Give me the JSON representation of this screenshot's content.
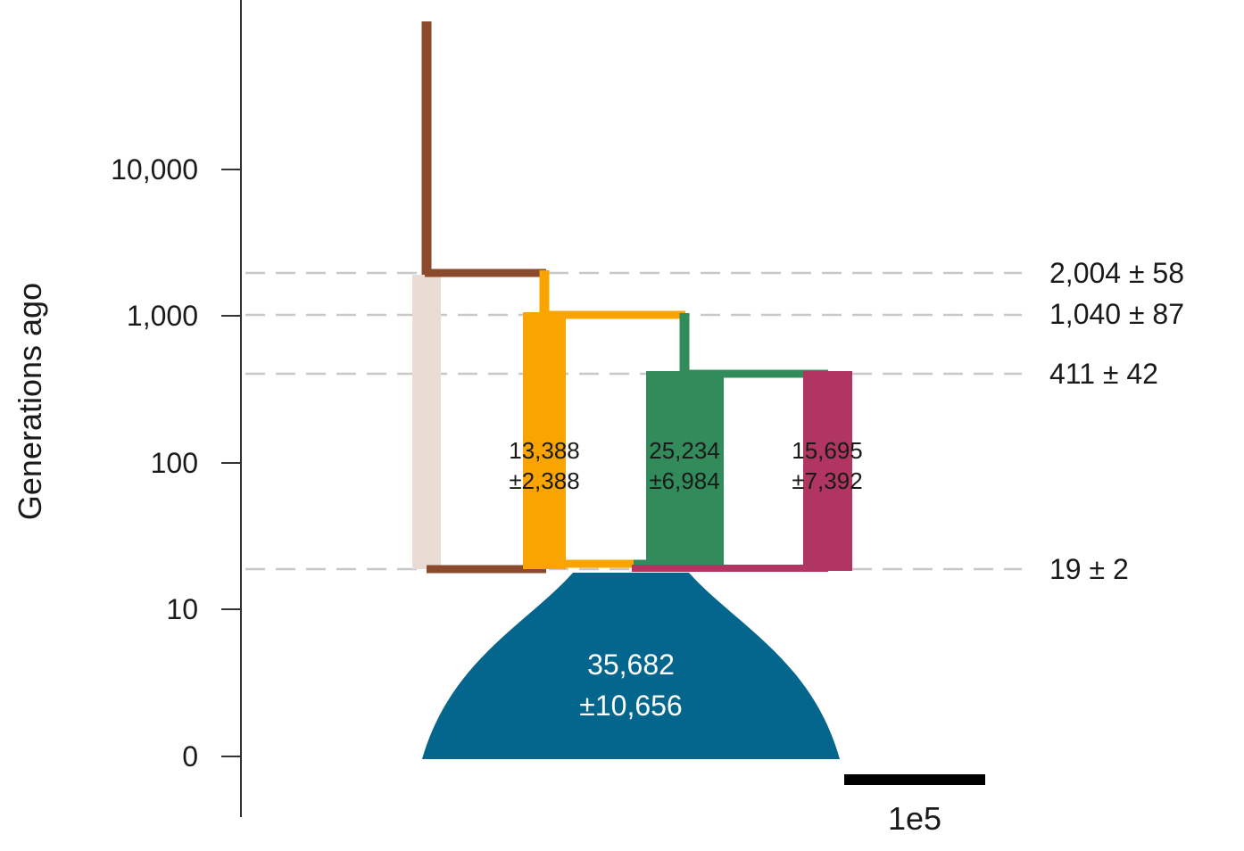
{
  "axis": {
    "title": "Generations ago",
    "ticks": [
      "10,000",
      "1,000",
      "100",
      "10",
      "0"
    ]
  },
  "events": [
    "2,004 ± 58",
    "1,040 ± 87",
    "411 ± 42",
    "19 ± 2"
  ],
  "populations": {
    "root": {
      "size": "35,682",
      "ci": "±10,656",
      "color": "#04668c"
    },
    "orange": {
      "size": "13,388",
      "ci": "±2,388",
      "color": "#f9a400"
    },
    "green": {
      "size": "25,234",
      "ci": "±6,984",
      "color": "#328b5a"
    },
    "crimson": {
      "size": "15,695",
      "ci": "±7,392",
      "color": "#b03561"
    },
    "brown": {
      "color": "#8b4a2b"
    },
    "ghost": {
      "color": "#e8dcd5"
    }
  },
  "scale_bar": {
    "label": "1e5"
  }
}
